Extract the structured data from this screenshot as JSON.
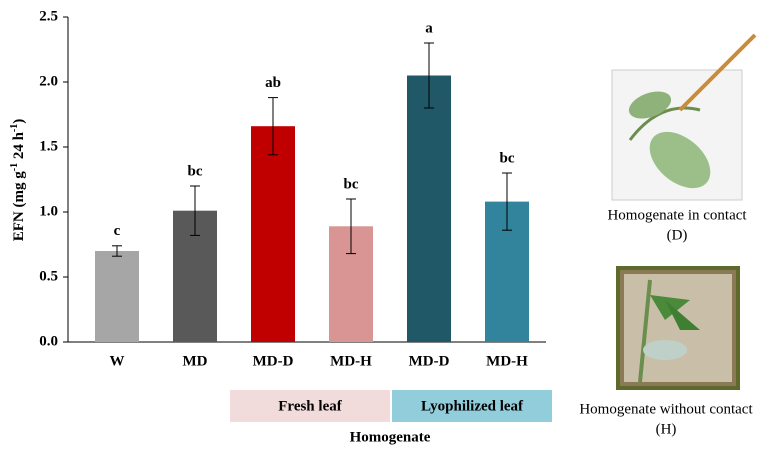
{
  "chart_data": {
    "type": "bar",
    "y_label": [
      "EFN (mg g",
      "-1",
      " 24 h",
      "-1",
      ")"
    ],
    "categories": [
      "W",
      "MD",
      "MD-D",
      "MD-H",
      "MD-D",
      "MD-H"
    ],
    "values": [
      0.7,
      1.01,
      1.66,
      0.89,
      2.05,
      1.08
    ],
    "errors": [
      0.04,
      0.19,
      0.22,
      0.21,
      0.25,
      0.22
    ],
    "letters": [
      "c",
      "bc",
      "ab",
      "bc",
      "a",
      "bc"
    ],
    "colors": [
      "#a6a6a6",
      "#595959",
      "#c00000",
      "#d99594",
      "#215868",
      "#31849b"
    ],
    "ylim": [
      0,
      2.5
    ],
    "yticks": [
      {
        "value": 0,
        "label": "0.0"
      },
      0.5,
      {
        "value": 1,
        "label": "1.0"
      },
      1.5,
      {
        "value": 2,
        "label": "2.0"
      },
      2.5
    ],
    "groups": [
      {
        "label": "Fresh leaf",
        "color": "#f2dcdb"
      },
      {
        "label": "Lyophilized leaf",
        "color": "#92cddc"
      }
    ],
    "group_title": "Homogenate",
    "images": [
      {
        "caption": "Homogenate in contact",
        "code": "(D)"
      },
      {
        "caption": "Homogenate without contact",
        "code": "(H)"
      }
    ]
  }
}
